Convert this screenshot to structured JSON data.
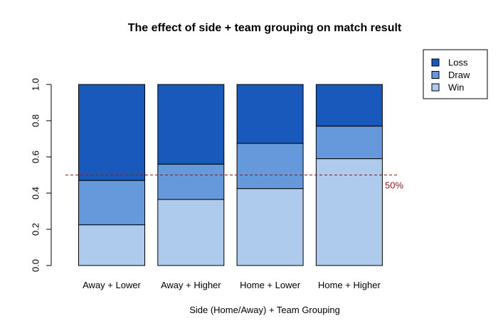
{
  "chart_data": {
    "type": "bar",
    "stacked": true,
    "title": "The effect of side + team grouping on match result",
    "xlabel": "Side (Home/Away) + Team Grouping",
    "ylabel": "",
    "ylim": [
      0,
      1
    ],
    "yticks": [
      "0.0",
      "0.2",
      "0.4",
      "0.6",
      "0.8",
      "1.0"
    ],
    "categories": [
      "Away + Lower",
      "Away + Higher",
      "Home + Lower",
      "Home + Higher"
    ],
    "series": [
      {
        "name": "Win",
        "color": "#aecbee",
        "values": [
          0.225,
          0.365,
          0.425,
          0.59
        ]
      },
      {
        "name": "Draw",
        "color": "#6699db",
        "values": [
          0.245,
          0.195,
          0.25,
          0.18
        ]
      },
      {
        "name": "Loss",
        "color": "#1859bb",
        "values": [
          0.53,
          0.44,
          0.325,
          0.23
        ]
      }
    ],
    "legend": {
      "position": "top-right",
      "order": [
        "Loss",
        "Draw",
        "Win"
      ]
    },
    "reference_line": {
      "y": 0.5,
      "label": "50%",
      "color": "#8b1a1a",
      "style": "dashed"
    },
    "grid": false
  }
}
